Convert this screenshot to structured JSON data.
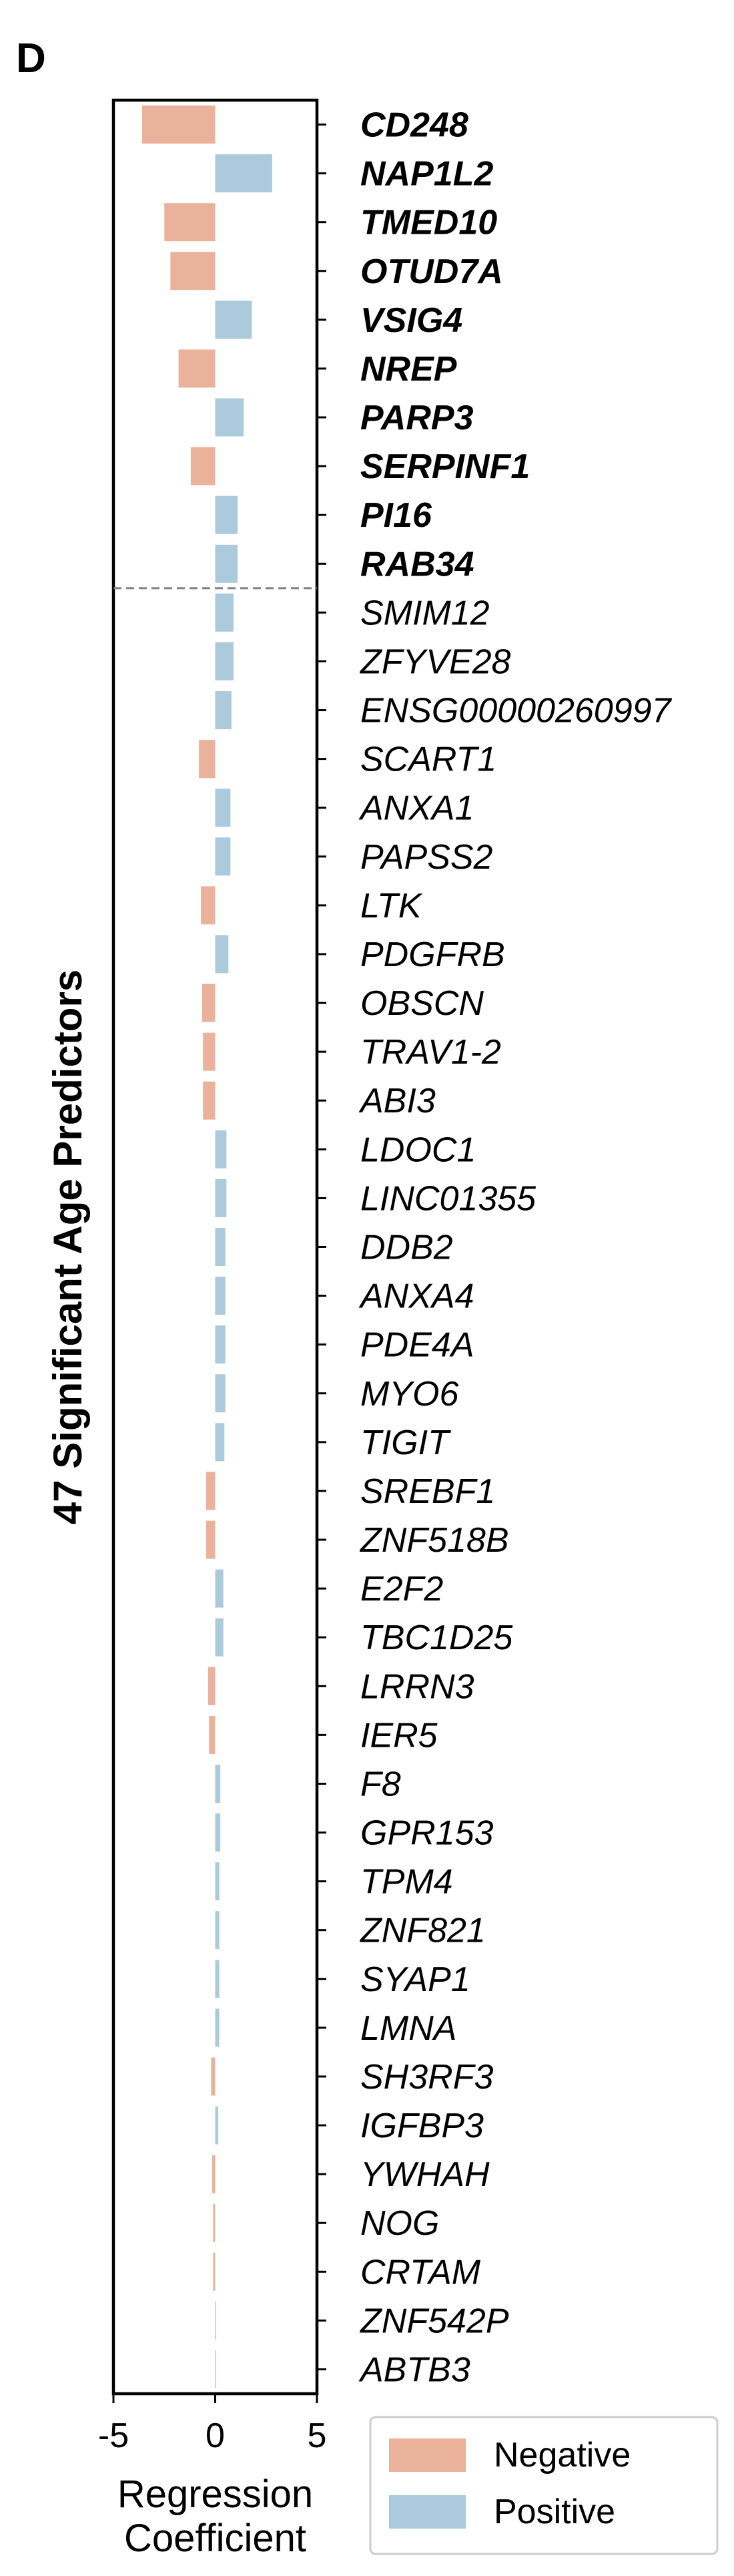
{
  "panel_label": "D",
  "chart_data": {
    "type": "bar",
    "orientation": "horizontal",
    "ylabel": "47 Significant Age Predictors",
    "xlabel": [
      "Regression",
      "Coefficient"
    ],
    "xlim": [
      -5,
      5
    ],
    "xticks": [
      "-5",
      "0",
      "5"
    ],
    "xtick_values": [
      -5,
      0,
      5
    ],
    "bold_top_count": 10,
    "legend": {
      "placement": "bottom-right",
      "entries": [
        {
          "label": "Negative",
          "color": "#eab19b"
        },
        {
          "label": "Positive",
          "color": "#abcadb"
        }
      ]
    },
    "colors": {
      "negative": "#eab19b",
      "positive": "#abcadb",
      "separator": "#808080"
    },
    "genes": [
      {
        "name": "CD248",
        "value": -3.6
      },
      {
        "name": "NAP1L2",
        "value": 2.8
      },
      {
        "name": "TMED10",
        "value": -2.5
      },
      {
        "name": "OTUD7A",
        "value": -2.2
      },
      {
        "name": "VSIG4",
        "value": 1.8
      },
      {
        "name": "NREP",
        "value": -1.8
      },
      {
        "name": "PARP3",
        "value": 1.4
      },
      {
        "name": "SERPINF1",
        "value": -1.2
      },
      {
        "name": "PI16",
        "value": 1.1
      },
      {
        "name": "RAB34",
        "value": 1.1
      },
      {
        "name": "SMIM12",
        "value": 0.9
      },
      {
        "name": "ZFYVE28",
        "value": 0.9
      },
      {
        "name": "ENSG00000260997",
        "value": 0.8
      },
      {
        "name": "SCART1",
        "value": -0.8
      },
      {
        "name": "ANXA1",
        "value": 0.75
      },
      {
        "name": "PAPSS2",
        "value": 0.75
      },
      {
        "name": "LTK",
        "value": -0.7
      },
      {
        "name": "PDGFRB",
        "value": 0.65
      },
      {
        "name": "OBSCN",
        "value": -0.65
      },
      {
        "name": "TRAV1-2",
        "value": -0.6
      },
      {
        "name": "ABI3",
        "value": -0.6
      },
      {
        "name": "LDOC1",
        "value": 0.55
      },
      {
        "name": "LINC01355",
        "value": 0.55
      },
      {
        "name": "DDB2",
        "value": 0.5
      },
      {
        "name": "ANXA4",
        "value": 0.5
      },
      {
        "name": "PDE4A",
        "value": 0.5
      },
      {
        "name": "MYO6",
        "value": 0.5
      },
      {
        "name": "TIGIT",
        "value": 0.45
      },
      {
        "name": "SREBF1",
        "value": -0.45
      },
      {
        "name": "ZNF518B",
        "value": -0.45
      },
      {
        "name": "E2F2",
        "value": 0.4
      },
      {
        "name": "TBC1D25",
        "value": 0.4
      },
      {
        "name": "LRRN3",
        "value": -0.35
      },
      {
        "name": "IER5",
        "value": -0.3
      },
      {
        "name": "F8",
        "value": 0.25
      },
      {
        "name": "GPR153",
        "value": 0.25
      },
      {
        "name": "TPM4",
        "value": 0.2
      },
      {
        "name": "ZNF821",
        "value": 0.2
      },
      {
        "name": "SYAP1",
        "value": 0.2
      },
      {
        "name": "LMNA",
        "value": 0.2
      },
      {
        "name": "SH3RF3",
        "value": -0.2
      },
      {
        "name": "IGFBP3",
        "value": 0.15
      },
      {
        "name": "YWHAH",
        "value": -0.15
      },
      {
        "name": "NOG",
        "value": -0.1
      },
      {
        "name": "CRTAM",
        "value": -0.1
      },
      {
        "name": "ZNF542P",
        "value": 0.05
      },
      {
        "name": "ABTB3",
        "value": 0.05
      }
    ]
  }
}
